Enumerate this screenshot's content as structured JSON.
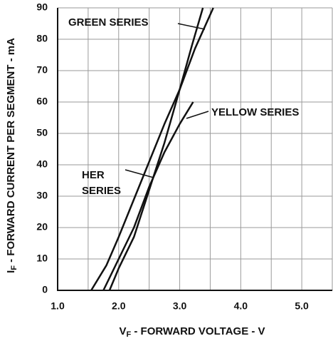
{
  "chart_data": {
    "type": "line",
    "x_label": {
      "symbol": "V",
      "subscript": "F",
      "text": " - FORWARD VOLTAGE - V"
    },
    "y_label": {
      "symbol": "I",
      "subscript": "F",
      "text": " - FORWARD CURRENT PER SEGMENT - mA"
    },
    "xlim": [
      1.0,
      5.5
    ],
    "ylim": [
      0,
      90
    ],
    "xticks": [
      {
        "value": 1.0,
        "label": "1.0"
      },
      {
        "value": 2.0,
        "label": "2.0"
      },
      {
        "value": 3.0,
        "label": "3.0"
      },
      {
        "value": 4.0,
        "label": "4.0"
      },
      {
        "value": 5.0,
        "label": "5.0"
      }
    ],
    "xminor": [
      1.5,
      2.5,
      3.5,
      4.5,
      5.5
    ],
    "yticks": [
      0,
      10,
      20,
      30,
      40,
      50,
      60,
      70,
      80,
      90
    ],
    "grid": true,
    "series": [
      {
        "name": "HER SERIES",
        "color": "#111111",
        "x": [
          1.55,
          1.8,
          2.0,
          2.25,
          2.5,
          2.75,
          3.0,
          3.25,
          3.55
        ],
        "values": [
          0,
          8,
          17,
          29,
          41,
          53,
          64,
          77,
          90
        ]
      },
      {
        "name": "YELLOW SERIES",
        "color": "#111111",
        "x": [
          1.75,
          2.0,
          2.25,
          2.5,
          2.75,
          3.0,
          3.22
        ],
        "values": [
          0,
          10,
          20,
          33,
          44,
          53,
          60
        ]
      },
      {
        "name": "GREEN SERIES",
        "color": "#111111",
        "x": [
          1.85,
          2.0,
          2.25,
          2.5,
          2.75,
          3.0,
          3.2,
          3.38
        ],
        "values": [
          0,
          7,
          17,
          32,
          47,
          64,
          78,
          90
        ]
      }
    ]
  }
}
